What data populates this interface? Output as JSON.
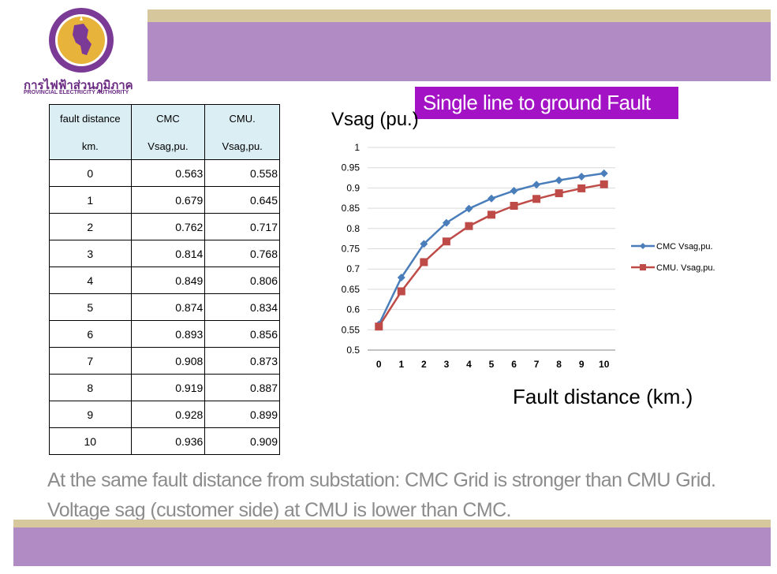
{
  "logo": {
    "thai": "การไฟฟ้าส่วนภูมิภาค",
    "english": "PROVINCIAL ELECTRICITY AUTHORITY"
  },
  "title": "Single line to ground Fault",
  "table": {
    "header_row1": [
      "fault distance",
      "CMC",
      "CMU."
    ],
    "header_row2": [
      "km.",
      "Vsag,pu.",
      "Vsag,pu."
    ],
    "rows": [
      [
        "0",
        "0.563",
        "0.558"
      ],
      [
        "1",
        "0.679",
        "0.645"
      ],
      [
        "2",
        "0.762",
        "0.717"
      ],
      [
        "3",
        "0.814",
        "0.768"
      ],
      [
        "4",
        "0.849",
        "0.806"
      ],
      [
        "5",
        "0.874",
        "0.834"
      ],
      [
        "6",
        "0.893",
        "0.856"
      ],
      [
        "7",
        "0.908",
        "0.873"
      ],
      [
        "8",
        "0.919",
        "0.887"
      ],
      [
        "9",
        "0.928",
        "0.899"
      ],
      [
        "10",
        "0.936",
        "0.909"
      ]
    ]
  },
  "chart_data": {
    "type": "line",
    "title": "",
    "ylabel": "Vsag (pu.)",
    "xlabel": "Fault distance (km.)",
    "x": [
      0,
      1,
      2,
      3,
      4,
      5,
      6,
      7,
      8,
      9,
      10
    ],
    "ylim": [
      0.5,
      1
    ],
    "yticks": [
      "0.5",
      "0.55",
      "0.6",
      "0.65",
      "0.7",
      "0.75",
      "0.8",
      "0.85",
      "0.9",
      "0.95",
      "1"
    ],
    "grid": true,
    "legend": "right",
    "series": [
      {
        "name": "CMC Vsag,pu.",
        "color": "#4a7ebb",
        "marker": "diamond",
        "values": [
          0.563,
          0.679,
          0.762,
          0.814,
          0.849,
          0.874,
          0.893,
          0.908,
          0.919,
          0.928,
          0.936
        ]
      },
      {
        "name": "CMU. Vsag,pu.",
        "color": "#be4b48",
        "marker": "square",
        "values": [
          0.558,
          0.645,
          0.717,
          0.768,
          0.806,
          0.834,
          0.856,
          0.873,
          0.887,
          0.899,
          0.909
        ]
      }
    ]
  },
  "summary": "At the same fault distance from substation: CMC Grid is stronger than CMU Grid. Voltage sag (customer side) at CMU is lower than CMC."
}
